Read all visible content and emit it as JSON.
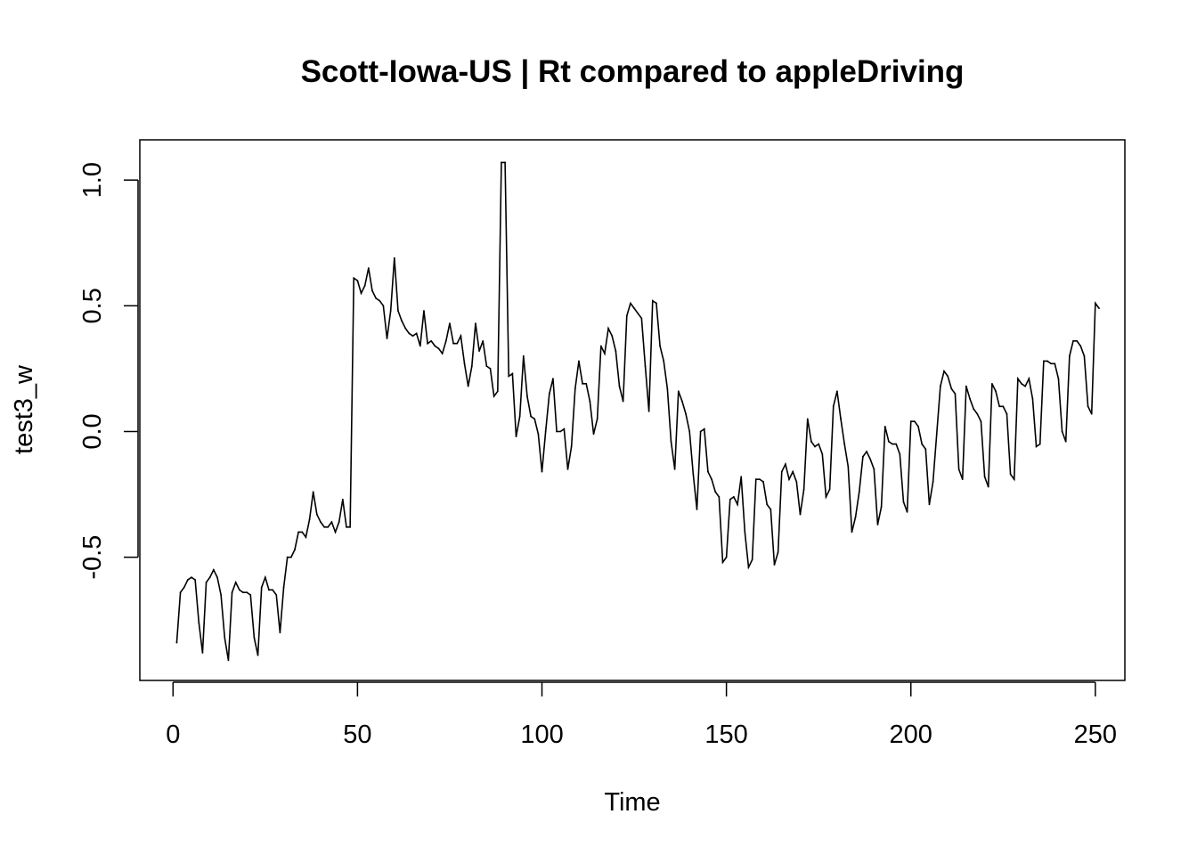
{
  "chart_data": {
    "type": "line",
    "title": "Scott-Iowa-US | Rt compared to appleDriving",
    "xlabel": "Time",
    "ylabel": "test3_w",
    "xlim": [
      -9,
      258
    ],
    "ylim": [
      -0.99,
      1.16
    ],
    "x_ticks": [
      0,
      50,
      100,
      150,
      200,
      250
    ],
    "x_tick_labels": [
      "0",
      "50",
      "100",
      "150",
      "200",
      "250"
    ],
    "y_ticks": [
      -0.5,
      0.0,
      0.5,
      1.0
    ],
    "y_tick_labels": [
      "-0.5",
      "0.0",
      "0.5",
      "1.0"
    ],
    "grid": false,
    "legend": "none",
    "line_color": "#000000",
    "series": [
      {
        "x_start": 1,
        "values": [
          -0.84,
          -0.64,
          -0.62,
          -0.59,
          -0.58,
          -0.59,
          -0.76,
          -0.88,
          -0.6,
          -0.58,
          -0.55,
          -0.58,
          -0.65,
          -0.82,
          -0.91,
          -0.64,
          -0.6,
          -0.63,
          -0.64,
          -0.64,
          -0.65,
          -0.82,
          -0.89,
          -0.62,
          -0.58,
          -0.63,
          -0.63,
          -0.65,
          -0.8,
          -0.62,
          -0.5,
          -0.5,
          -0.47,
          -0.4,
          -0.4,
          -0.42,
          -0.35,
          -0.24,
          -0.33,
          -0.36,
          -0.38,
          -0.38,
          -0.36,
          -0.4,
          -0.36,
          -0.27,
          -0.38,
          -0.38,
          0.61,
          0.6,
          0.55,
          0.58,
          0.65,
          0.56,
          0.53,
          0.52,
          0.5,
          0.37,
          0.48,
          0.69,
          0.48,
          0.44,
          0.41,
          0.39,
          0.38,
          0.39,
          0.34,
          0.48,
          0.35,
          0.36,
          0.34,
          0.33,
          0.31,
          0.36,
          0.43,
          0.35,
          0.35,
          0.38,
          0.27,
          0.18,
          0.26,
          0.43,
          0.32,
          0.36,
          0.26,
          0.25,
          0.14,
          0.16,
          1.07,
          1.07,
          0.22,
          0.23,
          -0.02,
          0.06,
          0.3,
          0.14,
          0.06,
          0.05,
          -0.01,
          -0.16,
          0.0,
          0.15,
          0.21,
          0.0,
          0.0,
          0.01,
          -0.15,
          -0.06,
          0.17,
          0.28,
          0.19,
          0.19,
          0.12,
          -0.01,
          0.05,
          0.34,
          0.31,
          0.41,
          0.38,
          0.32,
          0.18,
          0.12,
          0.46,
          0.51,
          0.49,
          0.47,
          0.45,
          0.26,
          0.08,
          0.52,
          0.51,
          0.34,
          0.28,
          0.17,
          -0.04,
          -0.15,
          0.16,
          0.12,
          0.07,
          0.0,
          -0.17,
          -0.31,
          0.0,
          0.01,
          -0.16,
          -0.19,
          -0.24,
          -0.26,
          -0.52,
          -0.5,
          -0.27,
          -0.26,
          -0.29,
          -0.18,
          -0.4,
          -0.54,
          -0.51,
          -0.19,
          -0.19,
          -0.2,
          -0.29,
          -0.31,
          -0.53,
          -0.48,
          -0.16,
          -0.13,
          -0.19,
          -0.16,
          -0.2,
          -0.33,
          -0.23,
          0.05,
          -0.04,
          -0.06,
          -0.05,
          -0.09,
          -0.26,
          -0.23,
          0.1,
          0.16,
          0.05,
          -0.05,
          -0.14,
          -0.4,
          -0.34,
          -0.24,
          -0.1,
          -0.08,
          -0.11,
          -0.15,
          -0.37,
          -0.3,
          0.02,
          -0.04,
          -0.05,
          -0.05,
          -0.09,
          -0.28,
          -0.32,
          0.04,
          0.04,
          0.02,
          -0.05,
          -0.07,
          -0.29,
          -0.2,
          -0.01,
          0.18,
          0.24,
          0.22,
          0.17,
          0.15,
          -0.15,
          -0.19,
          0.18,
          0.13,
          0.09,
          0.07,
          0.04,
          -0.18,
          -0.22,
          0.19,
          0.16,
          0.1,
          0.1,
          0.07,
          -0.17,
          -0.19,
          0.21,
          0.19,
          0.18,
          0.21,
          0.13,
          -0.06,
          -0.05,
          0.28,
          0.28,
          0.27,
          0.27,
          0.21,
          0.0,
          -0.04,
          0.3,
          0.36,
          0.36,
          0.34,
          0.3,
          0.1,
          0.07,
          0.51,
          0.49
        ]
      }
    ]
  }
}
